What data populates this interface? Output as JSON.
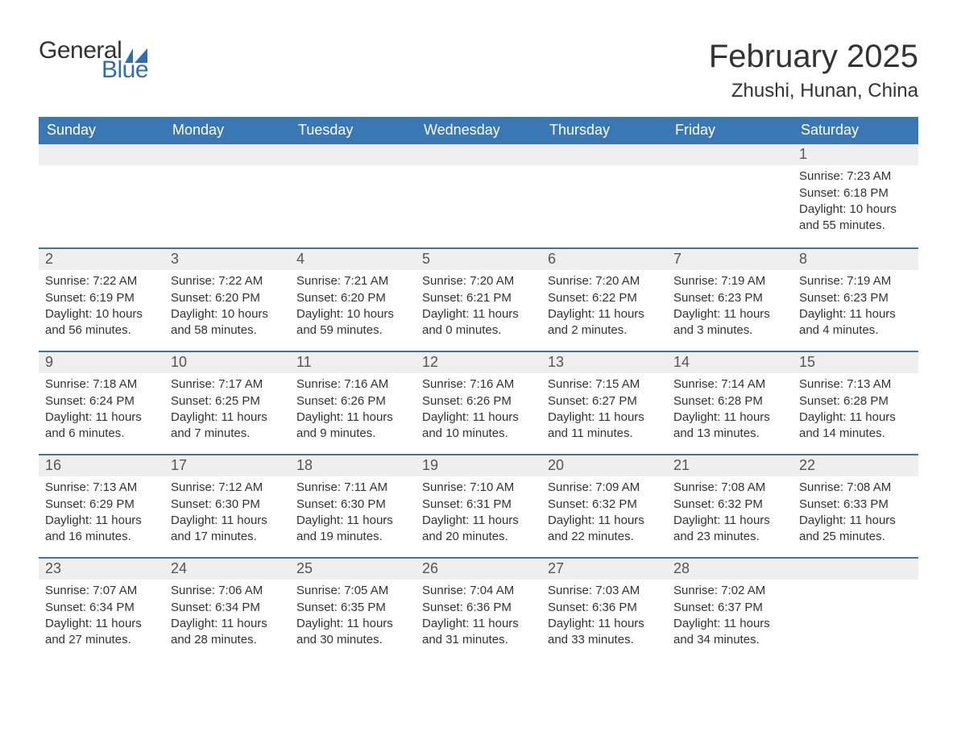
{
  "logo": {
    "text1": "General",
    "text2": "Blue",
    "flag_color": "#2f6fb0",
    "text1_color": "#333333",
    "text2_color": "#2f6fb0"
  },
  "title": "February 2025",
  "location": "Zhushi, Hunan, China",
  "colors": {
    "header_bg": "#3a78b5",
    "header_text": "#ffffff",
    "daynum_bg": "#efefef",
    "row_border": "#3a78b5",
    "body_text": "#333333",
    "page_bg": "#ffffff"
  },
  "weekdays": [
    "Sunday",
    "Monday",
    "Tuesday",
    "Wednesday",
    "Thursday",
    "Friday",
    "Saturday"
  ],
  "weeks": [
    [
      null,
      null,
      null,
      null,
      null,
      null,
      {
        "n": "1",
        "sunrise": "Sunrise: 7:23 AM",
        "sunset": "Sunset: 6:18 PM",
        "daylight": "Daylight: 10 hours and 55 minutes."
      }
    ],
    [
      {
        "n": "2",
        "sunrise": "Sunrise: 7:22 AM",
        "sunset": "Sunset: 6:19 PM",
        "daylight": "Daylight: 10 hours and 56 minutes."
      },
      {
        "n": "3",
        "sunrise": "Sunrise: 7:22 AM",
        "sunset": "Sunset: 6:20 PM",
        "daylight": "Daylight: 10 hours and 58 minutes."
      },
      {
        "n": "4",
        "sunrise": "Sunrise: 7:21 AM",
        "sunset": "Sunset: 6:20 PM",
        "daylight": "Daylight: 10 hours and 59 minutes."
      },
      {
        "n": "5",
        "sunrise": "Sunrise: 7:20 AM",
        "sunset": "Sunset: 6:21 PM",
        "daylight": "Daylight: 11 hours and 0 minutes."
      },
      {
        "n": "6",
        "sunrise": "Sunrise: 7:20 AM",
        "sunset": "Sunset: 6:22 PM",
        "daylight": "Daylight: 11 hours and 2 minutes."
      },
      {
        "n": "7",
        "sunrise": "Sunrise: 7:19 AM",
        "sunset": "Sunset: 6:23 PM",
        "daylight": "Daylight: 11 hours and 3 minutes."
      },
      {
        "n": "8",
        "sunrise": "Sunrise: 7:19 AM",
        "sunset": "Sunset: 6:23 PM",
        "daylight": "Daylight: 11 hours and 4 minutes."
      }
    ],
    [
      {
        "n": "9",
        "sunrise": "Sunrise: 7:18 AM",
        "sunset": "Sunset: 6:24 PM",
        "daylight": "Daylight: 11 hours and 6 minutes."
      },
      {
        "n": "10",
        "sunrise": "Sunrise: 7:17 AM",
        "sunset": "Sunset: 6:25 PM",
        "daylight": "Daylight: 11 hours and 7 minutes."
      },
      {
        "n": "11",
        "sunrise": "Sunrise: 7:16 AM",
        "sunset": "Sunset: 6:26 PM",
        "daylight": "Daylight: 11 hours and 9 minutes."
      },
      {
        "n": "12",
        "sunrise": "Sunrise: 7:16 AM",
        "sunset": "Sunset: 6:26 PM",
        "daylight": "Daylight: 11 hours and 10 minutes."
      },
      {
        "n": "13",
        "sunrise": "Sunrise: 7:15 AM",
        "sunset": "Sunset: 6:27 PM",
        "daylight": "Daylight: 11 hours and 11 minutes."
      },
      {
        "n": "14",
        "sunrise": "Sunrise: 7:14 AM",
        "sunset": "Sunset: 6:28 PM",
        "daylight": "Daylight: 11 hours and 13 minutes."
      },
      {
        "n": "15",
        "sunrise": "Sunrise: 7:13 AM",
        "sunset": "Sunset: 6:28 PM",
        "daylight": "Daylight: 11 hours and 14 minutes."
      }
    ],
    [
      {
        "n": "16",
        "sunrise": "Sunrise: 7:13 AM",
        "sunset": "Sunset: 6:29 PM",
        "daylight": "Daylight: 11 hours and 16 minutes."
      },
      {
        "n": "17",
        "sunrise": "Sunrise: 7:12 AM",
        "sunset": "Sunset: 6:30 PM",
        "daylight": "Daylight: 11 hours and 17 minutes."
      },
      {
        "n": "18",
        "sunrise": "Sunrise: 7:11 AM",
        "sunset": "Sunset: 6:30 PM",
        "daylight": "Daylight: 11 hours and 19 minutes."
      },
      {
        "n": "19",
        "sunrise": "Sunrise: 7:10 AM",
        "sunset": "Sunset: 6:31 PM",
        "daylight": "Daylight: 11 hours and 20 minutes."
      },
      {
        "n": "20",
        "sunrise": "Sunrise: 7:09 AM",
        "sunset": "Sunset: 6:32 PM",
        "daylight": "Daylight: 11 hours and 22 minutes."
      },
      {
        "n": "21",
        "sunrise": "Sunrise: 7:08 AM",
        "sunset": "Sunset: 6:32 PM",
        "daylight": "Daylight: 11 hours and 23 minutes."
      },
      {
        "n": "22",
        "sunrise": "Sunrise: 7:08 AM",
        "sunset": "Sunset: 6:33 PM",
        "daylight": "Daylight: 11 hours and 25 minutes."
      }
    ],
    [
      {
        "n": "23",
        "sunrise": "Sunrise: 7:07 AM",
        "sunset": "Sunset: 6:34 PM",
        "daylight": "Daylight: 11 hours and 27 minutes."
      },
      {
        "n": "24",
        "sunrise": "Sunrise: 7:06 AM",
        "sunset": "Sunset: 6:34 PM",
        "daylight": "Daylight: 11 hours and 28 minutes."
      },
      {
        "n": "25",
        "sunrise": "Sunrise: 7:05 AM",
        "sunset": "Sunset: 6:35 PM",
        "daylight": "Daylight: 11 hours and 30 minutes."
      },
      {
        "n": "26",
        "sunrise": "Sunrise: 7:04 AM",
        "sunset": "Sunset: 6:36 PM",
        "daylight": "Daylight: 11 hours and 31 minutes."
      },
      {
        "n": "27",
        "sunrise": "Sunrise: 7:03 AM",
        "sunset": "Sunset: 6:36 PM",
        "daylight": "Daylight: 11 hours and 33 minutes."
      },
      {
        "n": "28",
        "sunrise": "Sunrise: 7:02 AM",
        "sunset": "Sunset: 6:37 PM",
        "daylight": "Daylight: 11 hours and 34 minutes."
      },
      null
    ]
  ]
}
